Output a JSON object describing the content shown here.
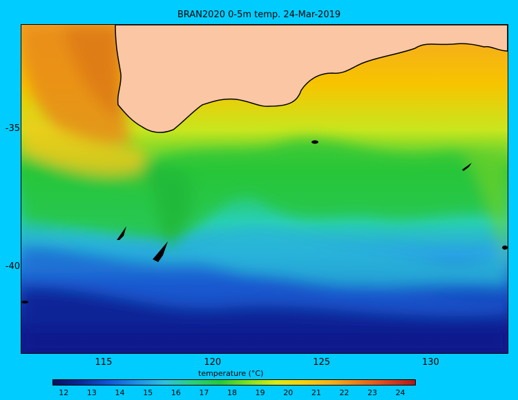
{
  "title": "BRAN2020 0-5m temp. 24-Mar-2019",
  "colorbar_label": "temperature (°C)",
  "colors": {
    "background": "#00ccff",
    "land": "#fbc6a3",
    "coast": "#000000"
  },
  "map": {
    "x_ticks": [
      "115",
      "120",
      "125",
      "130"
    ],
    "y_ticks": [
      "-35",
      "-40"
    ],
    "x_tick_values": [
      115,
      120,
      125,
      130
    ],
    "y_tick_values": [
      -35,
      -40
    ],
    "lon_range": [
      111.2,
      133.5
    ],
    "lat_range": [
      -43.1,
      -31.2
    ]
  },
  "colorbar": {
    "ticks": [
      "12",
      "13",
      "14",
      "15",
      "16",
      "17",
      "18",
      "19",
      "20",
      "21",
      "22",
      "23",
      "24"
    ],
    "tick_values": [
      12,
      13,
      14,
      15,
      16,
      17,
      18,
      19,
      20,
      21,
      22,
      23,
      24
    ],
    "range": [
      11.6,
      24.5
    ]
  }
}
